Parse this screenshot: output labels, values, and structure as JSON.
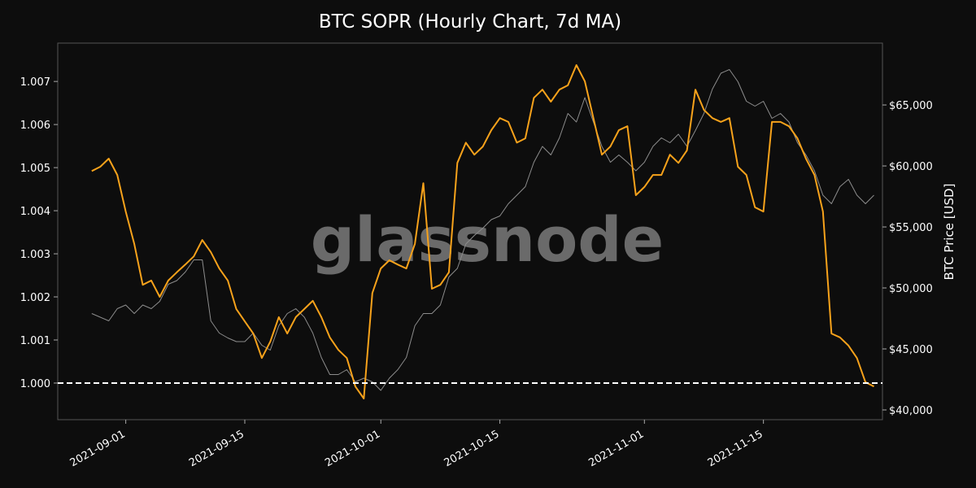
{
  "chart_data": {
    "type": "line",
    "title": "BTC SOPR (Hourly Chart, 7d MA)",
    "y2label": "BTC Price [USD]",
    "watermark": "glassnode",
    "background": "#0d0d0d",
    "hline": 1.0,
    "x": [
      "2021-08-28",
      "2021-08-29",
      "2021-08-30",
      "2021-08-31",
      "2021-09-01",
      "2021-09-02",
      "2021-09-03",
      "2021-09-04",
      "2021-09-05",
      "2021-09-06",
      "2021-09-07",
      "2021-09-08",
      "2021-09-09",
      "2021-09-10",
      "2021-09-11",
      "2021-09-12",
      "2021-09-13",
      "2021-09-14",
      "2021-09-15",
      "2021-09-16",
      "2021-09-17",
      "2021-09-18",
      "2021-09-19",
      "2021-09-20",
      "2021-09-21",
      "2021-09-22",
      "2021-09-23",
      "2021-09-24",
      "2021-09-25",
      "2021-09-26",
      "2021-09-27",
      "2021-09-28",
      "2021-09-29",
      "2021-09-30",
      "2021-10-01",
      "2021-10-02",
      "2021-10-03",
      "2021-10-04",
      "2021-10-05",
      "2021-10-06",
      "2021-10-07",
      "2021-10-08",
      "2021-10-09",
      "2021-10-10",
      "2021-10-11",
      "2021-10-12",
      "2021-10-13",
      "2021-10-14",
      "2021-10-15",
      "2021-10-16",
      "2021-10-17",
      "2021-10-18",
      "2021-10-19",
      "2021-10-20",
      "2021-10-21",
      "2021-10-22",
      "2021-10-23",
      "2021-10-24",
      "2021-10-25",
      "2021-10-26",
      "2021-10-27",
      "2021-10-28",
      "2021-10-29",
      "2021-10-30",
      "2021-10-31",
      "2021-11-01",
      "2021-11-02",
      "2021-11-03",
      "2021-11-04",
      "2021-11-05",
      "2021-11-06",
      "2021-11-07",
      "2021-11-08",
      "2021-11-09",
      "2021-11-10",
      "2021-11-11",
      "2021-11-12",
      "2021-11-13",
      "2021-11-14",
      "2021-11-15",
      "2021-11-16",
      "2021-11-17",
      "2021-11-18",
      "2021-11-19",
      "2021-11-20",
      "2021-11-21",
      "2021-11-22",
      "2021-11-23",
      "2021-11-24",
      "2021-11-25",
      "2021-11-26",
      "2021-11-27",
      "2021-11-28"
    ],
    "xlim": [
      "2021-08-24",
      "2021-11-29"
    ],
    "xticks": [
      "2021-09-01",
      "2021-09-15",
      "2021-10-01",
      "2021-10-15",
      "2021-11-01",
      "2021-11-15"
    ],
    "ylim": [
      0.99915,
      1.00789
    ],
    "yticks": [
      {
        "value": 1.0,
        "label": "1.000"
      },
      {
        "value": 1.001,
        "label": "1.001"
      },
      {
        "value": 1.002,
        "label": "1.002"
      },
      {
        "value": 1.003,
        "label": "1.003"
      },
      {
        "value": 1.004,
        "label": "1.004"
      },
      {
        "value": 1.005,
        "label": "1.005"
      },
      {
        "value": 1.006,
        "label": "1.006"
      },
      {
        "value": 1.007,
        "label": "1.007"
      }
    ],
    "y2lim": [
      39200,
      70070
    ],
    "y2ticks": [
      {
        "value": 40000,
        "label": "$40,000"
      },
      {
        "value": 45000,
        "label": "$45,000"
      },
      {
        "value": 50000,
        "label": "$50,000"
      },
      {
        "value": 55000,
        "label": "$55,000"
      },
      {
        "value": 60000,
        "label": "$60,000"
      },
      {
        "value": 65000,
        "label": "$65,000"
      }
    ],
    "series": [
      {
        "axis": "y2",
        "color": "#8c8c8c",
        "values": [
          47900,
          47600,
          47300,
          48300,
          48600,
          47900,
          48600,
          48300,
          48900,
          50300,
          50600,
          51300,
          52300,
          52300,
          47300,
          46300,
          45900,
          45600,
          45600,
          46300,
          45300,
          44900,
          46900,
          47900,
          48300,
          47600,
          46300,
          44300,
          42900,
          42900,
          43300,
          42300,
          42600,
          42300,
          41600,
          42600,
          43300,
          44300,
          46900,
          47900,
          47900,
          48600,
          50900,
          51600,
          53600,
          54300,
          54900,
          55600,
          55900,
          56900,
          57600,
          58300,
          60300,
          61600,
          60900,
          62300,
          64300,
          63600,
          65600,
          63600,
          61600,
          60300,
          60900,
          60300,
          59600,
          60300,
          61600,
          62300,
          61900,
          62600,
          61600,
          62900,
          64300,
          66300,
          67600,
          67900,
          66900,
          65300,
          64900,
          65300,
          63900,
          64300,
          63600,
          61900,
          60900,
          59600,
          57600,
          56900,
          58300,
          58900,
          57600,
          56900,
          57600
        ]
      },
      {
        "axis": "y",
        "color": "#f7a21b",
        "values": [
          1.00492,
          1.00502,
          1.00521,
          1.00483,
          1.00398,
          1.00323,
          1.00228,
          1.00238,
          1.002,
          1.00238,
          1.00257,
          1.00275,
          1.00294,
          1.00332,
          1.00304,
          1.00266,
          1.00238,
          1.00172,
          1.00143,
          1.00115,
          1.00058,
          1.00096,
          1.00153,
          1.00115,
          1.00153,
          1.00172,
          1.00191,
          1.00153,
          1.00106,
          1.00077,
          1.00058,
          0.99992,
          0.99964,
          1.00209,
          1.00266,
          1.00285,
          1.00275,
          1.00266,
          1.00323,
          1.00464,
          1.00219,
          1.00228,
          1.00257,
          1.00511,
          1.00558,
          1.0053,
          1.00549,
          1.00587,
          1.00615,
          1.00606,
          1.00558,
          1.00568,
          1.00662,
          1.00681,
          1.00653,
          1.00681,
          1.00691,
          1.00738,
          1.007,
          1.00615,
          1.0053,
          1.00549,
          1.00587,
          1.00596,
          1.00436,
          1.00455,
          1.00483,
          1.00483,
          1.0053,
          1.00511,
          1.0054,
          1.00681,
          1.00634,
          1.00615,
          1.00606,
          1.00615,
          1.00502,
          1.00483,
          1.00408,
          1.00398,
          1.00606,
          1.00606,
          1.00596,
          1.00568,
          1.00521,
          1.00483,
          1.00398,
          1.00115,
          1.00106,
          1.00087,
          1.00058,
          1.00002,
          0.99992
        ]
      }
    ]
  }
}
